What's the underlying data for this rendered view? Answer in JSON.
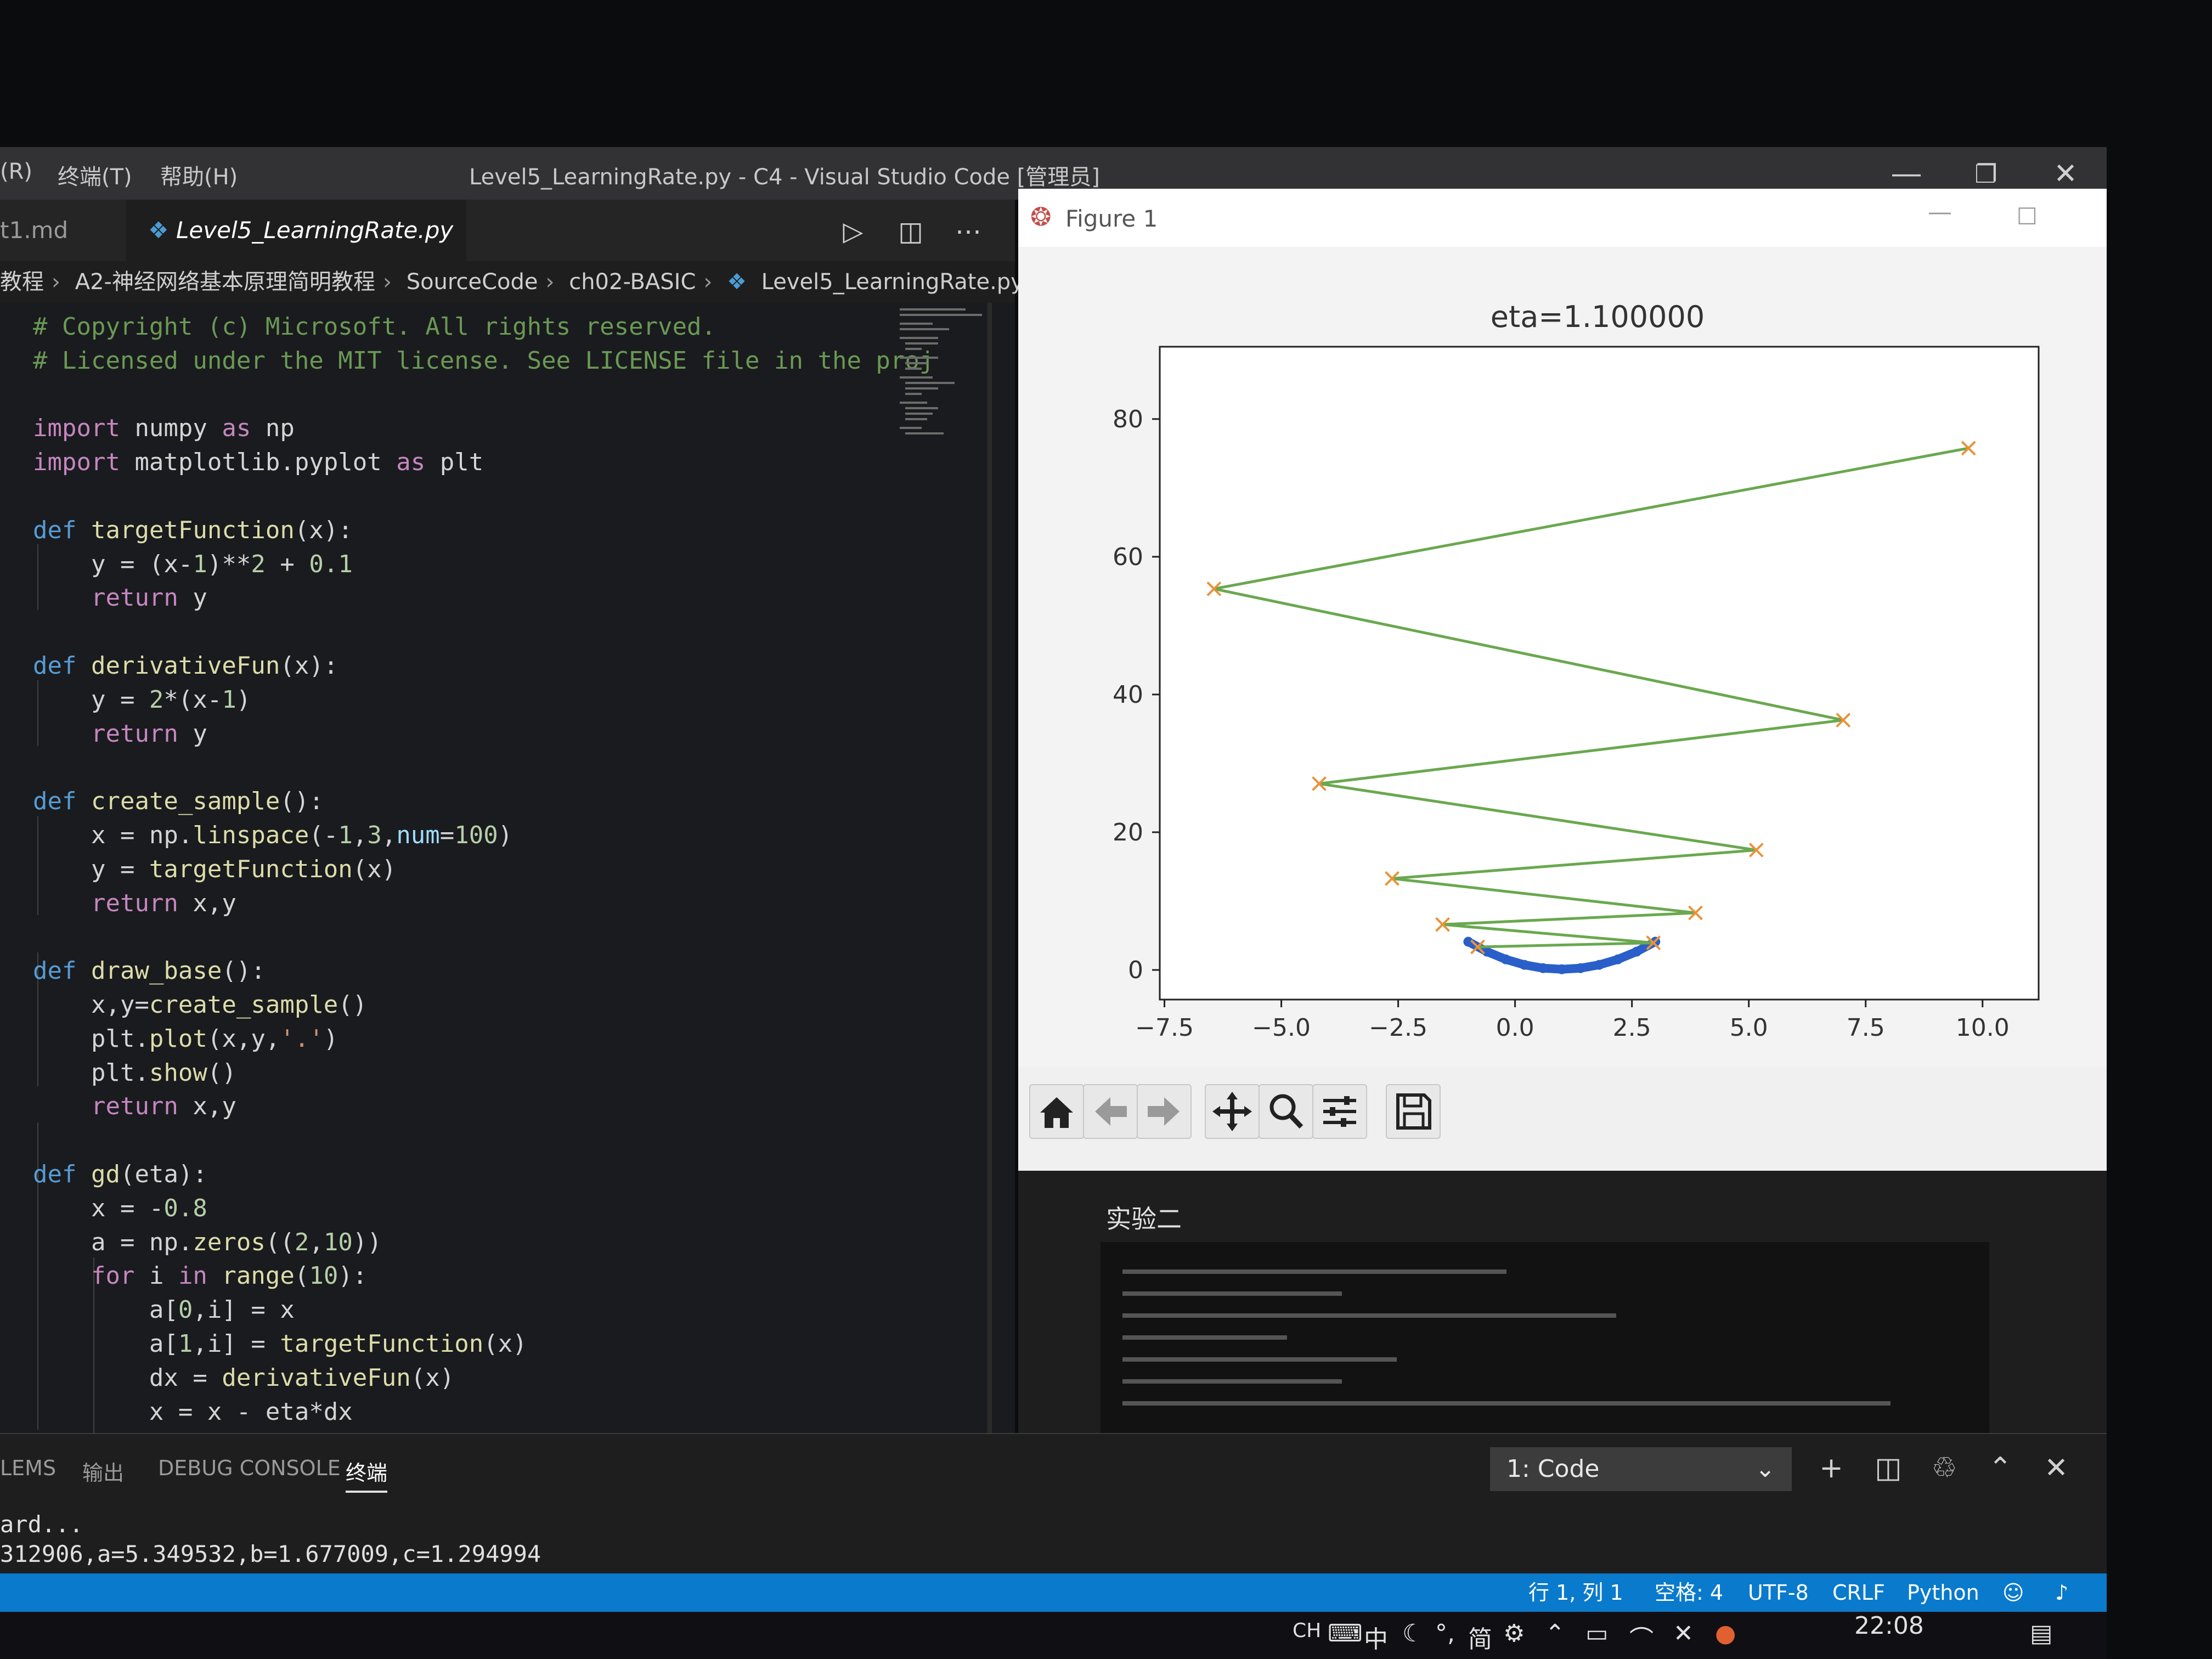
{
  "window": {
    "menus": [
      "(R)",
      "终端(T)",
      "帮助(H)"
    ],
    "title": "Level5_LearningRate.py - C4 - Visual Studio Code [管理员]"
  },
  "tabs": [
    {
      "label": "t1.md",
      "modified": true,
      "active": false
    },
    {
      "label": "Level5_LearningRate.py",
      "active": true
    }
  ],
  "breadcrumb": [
    "教程",
    "A2-神经网络基本原理简明教程",
    "SourceCode",
    "ch02-BASIC",
    "Level5_LearningRate.py"
  ],
  "code_lines": [
    "# Copyright (c) Microsoft. All rights reserved.",
    "# Licensed under the MIT license. See LICENSE file in the proj",
    "",
    "import numpy as np",
    "import matplotlib.pyplot as plt",
    "",
    "def targetFunction(x):",
    "    y = (x-1)**2 + 0.1",
    "    return y",
    "",
    "def derivativeFun(x):",
    "    y = 2*(x-1)",
    "    return y",
    "",
    "def create_sample():",
    "    x = np.linspace(-1,3,num=100)",
    "    y = targetFunction(x)",
    "    return x,y",
    "",
    "def draw_base():",
    "    x,y=create_sample()",
    "    plt.plot(x,y,'.')",
    "    plt.show()",
    "    return x,y",
    "",
    "def gd(eta):",
    "    x = -0.8",
    "    a = np.zeros((2,10))",
    "    for i in range(10):",
    "        a[0,i] = x",
    "        a[1,i] = targetFunction(x)",
    "        dx = derivativeFun(x)",
    "        x = x - eta*dx"
  ],
  "figure": {
    "window_title": "Figure 1",
    "toolbar_icons": [
      "home-icon",
      "back-arrow-icon",
      "forward-arrow-icon",
      "pan-icon",
      "zoom-icon",
      "configure-icon",
      "save-icon"
    ]
  },
  "chart_data": {
    "type": "line",
    "title": "eta=1.100000",
    "xlabel": "",
    "ylabel": "",
    "xlim": [
      -7.6,
      11.2
    ],
    "ylim": [
      -4.3,
      90.5
    ],
    "xticks": [
      -7.5,
      -5.0,
      -2.5,
      0.0,
      2.5,
      5.0,
      7.5,
      10.0
    ],
    "xtick_labels": [
      "−7.5",
      "−5.0",
      "−2.5",
      "0.0",
      "2.5",
      "5.0",
      "7.5",
      "10.0"
    ],
    "yticks": [
      0,
      20,
      40,
      60,
      80
    ],
    "ytick_labels": [
      "0",
      "20",
      "40",
      "60",
      "80"
    ],
    "series": [
      {
        "color": "#2a5fc9",
        "x": [
          -1.0,
          -0.6,
          -0.2,
          0.2,
          0.6,
          1.0,
          1.4,
          1.8,
          2.2,
          2.6,
          3.0
        ],
        "y": [
          4.1,
          2.66,
          1.54,
          0.74,
          0.26,
          0.1,
          0.26,
          0.74,
          1.54,
          2.66,
          4.1
        ]
      },
      {
        "color": "#6aa84f",
        "marker_color": "#e8923a",
        "x": [
          -0.8,
          2.96,
          -1.55,
          3.86,
          -2.63,
          5.16,
          -4.19,
          7.02,
          -6.44,
          9.7
        ],
        "y": [
          3.34,
          3.94,
          6.6,
          8.29,
          13.28,
          17.41,
          27.05,
          36.28,
          55.34,
          75.77
        ]
      }
    ]
  },
  "lower_right": {
    "heading": "实验二"
  },
  "panel": {
    "tabs": [
      "LEMS",
      "输出",
      "DEBUG CONSOLE",
      "终端"
    ],
    "active_tab": "终端",
    "terminal_select": "1: Code",
    "terminal_lines": [
      "ard...",
      "312906,a=5.349532,b=1.677009,c=1.294994"
    ]
  },
  "status": {
    "position": "行 1, 列 1",
    "spaces": "空格: 4",
    "encoding": "UTF-8",
    "eol": "CRLF",
    "language": "Python"
  },
  "taskbar": {
    "ime": "CH",
    "lang": "中",
    "simplified": "简",
    "time": "22:08"
  }
}
